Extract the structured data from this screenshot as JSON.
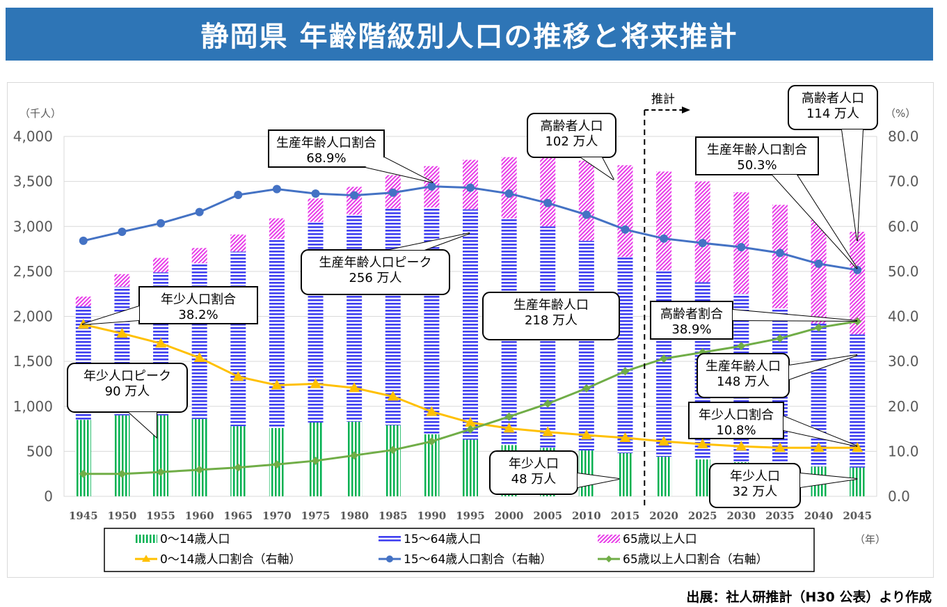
{
  "header": {
    "title": "静岡県  年齢階級別人口の推移と将来推計"
  },
  "source_note": "出展：社人研推計（H30 公表）より作成",
  "chart_data": {
    "type": "bar",
    "title": "静岡県  年齢階級別人口の推移と将来推計",
    "categories": [
      "1945",
      "1950",
      "1955",
      "1960",
      "1965",
      "1970",
      "1975",
      "1980",
      "1985",
      "1990",
      "1995",
      "2000",
      "2005",
      "2010",
      "2015",
      "2020",
      "2025",
      "2030",
      "2035",
      "2040",
      "2045"
    ],
    "xlabel": "（年）",
    "ylabel": "（千人）",
    "y2label": "（%）",
    "ylim": [
      0,
      4000
    ],
    "y2lim": [
      0,
      80
    ],
    "yticks": [
      "0",
      "500",
      "1,000",
      "1,500",
      "2,000",
      "2,500",
      "3,000",
      "3,500",
      "4,000"
    ],
    "y2ticks": [
      "0.0",
      "10.0",
      "20.0",
      "30.0",
      "40.0",
      "50.0",
      "60.0",
      "70.0",
      "80.0"
    ],
    "grid": true,
    "legend_position": "bottom",
    "projection_start": "2020",
    "projection_label": "推計",
    "stacked_series": [
      {
        "name": "0～14歳人口",
        "color": "#00b050",
        "pattern": "vertical-lines",
        "values": [
          850,
          900,
          900,
          860,
          780,
          760,
          820,
          830,
          790,
          690,
          630,
          570,
          540,
          510,
          480,
          440,
          410,
          380,
          350,
          330,
          320
        ]
      },
      {
        "name": "15～64歳人口",
        "color": "#3f3ff0",
        "pattern": "horizontal-lines",
        "values": [
          1260,
          1430,
          1590,
          1730,
          1940,
          2100,
          2230,
          2300,
          2410,
          2520,
          2560,
          2520,
          2460,
          2330,
          2180,
          2070,
          1970,
          1870,
          1740,
          1590,
          1480
        ]
      },
      {
        "name": "65歳以上人口",
        "color": "#e83ce8",
        "pattern": "diagonal-lines",
        "values": [
          110,
          140,
          160,
          170,
          190,
          230,
          260,
          310,
          370,
          460,
          550,
          680,
          800,
          890,
          1020,
          1100,
          1120,
          1130,
          1150,
          1150,
          1140
        ]
      }
    ],
    "line_series": [
      {
        "name": "0～14歳人口割合（右軸）",
        "color": "#ffc000",
        "marker": "triangle",
        "values": [
          38.2,
          36.2,
          34.0,
          30.8,
          26.6,
          24.7,
          25.0,
          24.1,
          22.2,
          18.8,
          16.4,
          15.1,
          14.3,
          13.6,
          13.0,
          12.2,
          11.6,
          11.1,
          10.8,
          10.8,
          10.8
        ]
      },
      {
        "name": "15～64歳人口割合（右軸）",
        "color": "#4472c4",
        "marker": "circle",
        "values": [
          56.8,
          58.8,
          60.7,
          63.2,
          67.0,
          68.3,
          67.3,
          66.9,
          67.5,
          68.9,
          68.6,
          67.3,
          65.2,
          62.6,
          59.3,
          57.3,
          56.3,
          55.4,
          54.1,
          51.7,
          50.3
        ]
      },
      {
        "name": "65歳以上人口割合（右軸）",
        "color": "#70ad47",
        "marker": "diamond",
        "values": [
          5.0,
          5.0,
          5.4,
          5.9,
          6.4,
          7.1,
          7.9,
          9.1,
          10.3,
          12.2,
          14.9,
          17.7,
          20.6,
          24.0,
          27.8,
          30.6,
          32.0,
          33.4,
          35.1,
          37.5,
          38.9
        ]
      }
    ],
    "annotations": [
      {
        "id": "peak-ratio-1990",
        "lines": [
          "生産年齢人口割合",
          "68.9%"
        ],
        "style": "rect"
      },
      {
        "id": "peak-pop-1995",
        "lines": [
          "生産年齢人口ピーク",
          "256 万人"
        ],
        "style": "rounded"
      },
      {
        "id": "youth-ratio-1945",
        "lines": [
          "年少人口割合",
          "38.2%"
        ],
        "style": "rect"
      },
      {
        "id": "youth-peak",
        "lines": [
          "年少人口ピーク",
          "90 万人"
        ],
        "style": "rounded"
      },
      {
        "id": "elderly-2015",
        "lines": [
          "高齢者人口",
          "102 万人"
        ],
        "style": "rounded"
      },
      {
        "id": "working-2015",
        "lines": [
          "生産年齢人口",
          "218 万人"
        ],
        "style": "rounded"
      },
      {
        "id": "youth-2015",
        "lines": [
          "年少人口",
          "48 万人"
        ],
        "style": "rounded"
      },
      {
        "id": "elderly-2045",
        "lines": [
          "高齢者人口",
          "114 万人"
        ],
        "style": "rounded"
      },
      {
        "id": "working-ratio-2045",
        "lines": [
          "生産年齢人口割合",
          "50.3%"
        ],
        "style": "rect"
      },
      {
        "id": "elderly-ratio-2045",
        "lines": [
          "高齢者割合",
          "38.9%"
        ],
        "style": "rect"
      },
      {
        "id": "working-2045",
        "lines": [
          "生産年齢人口",
          "148 万人"
        ],
        "style": "rounded"
      },
      {
        "id": "youth-ratio-2045",
        "lines": [
          "年少人口割合",
          "10.8%"
        ],
        "style": "rect"
      },
      {
        "id": "youth-2045",
        "lines": [
          "年少人口",
          "32 万人"
        ],
        "style": "rounded"
      }
    ]
  }
}
